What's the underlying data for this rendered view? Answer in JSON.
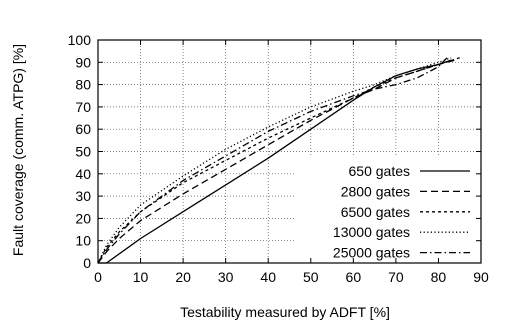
{
  "chart_data": {
    "type": "line",
    "xlabel": "Testability measured by ADFT [%]",
    "ylabel": "Fault coverage (comm. ATPG) [%]",
    "xlim": [
      0,
      90
    ],
    "ylim": [
      0,
      100
    ],
    "xticks": [
      "0",
      "10",
      "20",
      "30",
      "40",
      "50",
      "60",
      "70",
      "80",
      "90"
    ],
    "yticks": [
      "0",
      "10",
      "20",
      "30",
      "40",
      "50",
      "60",
      "70",
      "80",
      "90",
      "100"
    ],
    "grid": true,
    "legend_position": "bottom-right",
    "series": [
      {
        "name": "650 gates",
        "style": "solid",
        "points": [
          [
            0,
            0
          ],
          [
            2,
            0
          ],
          [
            10,
            11
          ],
          [
            20,
            23
          ],
          [
            30,
            35
          ],
          [
            40,
            47
          ],
          [
            50,
            60
          ],
          [
            60,
            73
          ],
          [
            65,
            79
          ],
          [
            70,
            84
          ],
          [
            75,
            87
          ],
          [
            80,
            89
          ],
          [
            83,
            91
          ]
        ]
      },
      {
        "name": "2800 gates",
        "style": "dashed",
        "points": [
          [
            0,
            0
          ],
          [
            2,
            5
          ],
          [
            5,
            11
          ],
          [
            10,
            19
          ],
          [
            20,
            31
          ],
          [
            30,
            42
          ],
          [
            40,
            53
          ],
          [
            50,
            64
          ],
          [
            60,
            74
          ],
          [
            65,
            78
          ],
          [
            70,
            83
          ],
          [
            75,
            86
          ],
          [
            80,
            89
          ],
          [
            84,
            91
          ]
        ]
      },
      {
        "name": "6500 gates",
        "style": "dotted-short",
        "points": [
          [
            0,
            0
          ],
          [
            2,
            7
          ],
          [
            5,
            14
          ],
          [
            10,
            23
          ],
          [
            20,
            36
          ],
          [
            30,
            46
          ],
          [
            40,
            56
          ],
          [
            50,
            65
          ],
          [
            60,
            74
          ],
          [
            65,
            79
          ],
          [
            70,
            83
          ],
          [
            75,
            86
          ],
          [
            80,
            89
          ],
          [
            85,
            92
          ]
        ]
      },
      {
        "name": "13000 gates",
        "style": "dotted",
        "points": [
          [
            0,
            0
          ],
          [
            2,
            8
          ],
          [
            5,
            16
          ],
          [
            10,
            26
          ],
          [
            20,
            39
          ],
          [
            30,
            51
          ],
          [
            40,
            61
          ],
          [
            50,
            70
          ],
          [
            60,
            77
          ],
          [
            65,
            80
          ],
          [
            70,
            84
          ],
          [
            75,
            87
          ],
          [
            80,
            90
          ],
          [
            83,
            92
          ]
        ]
      },
      {
        "name": "25000 gates",
        "style": "dash-dot",
        "points": [
          [
            0,
            0
          ],
          [
            2,
            6
          ],
          [
            5,
            13
          ],
          [
            10,
            23
          ],
          [
            20,
            37
          ],
          [
            30,
            48
          ],
          [
            40,
            59
          ],
          [
            50,
            68
          ],
          [
            60,
            75
          ],
          [
            65,
            78
          ],
          [
            70,
            80
          ],
          [
            75,
            83
          ],
          [
            80,
            88
          ],
          [
            82,
            92
          ]
        ]
      }
    ]
  }
}
